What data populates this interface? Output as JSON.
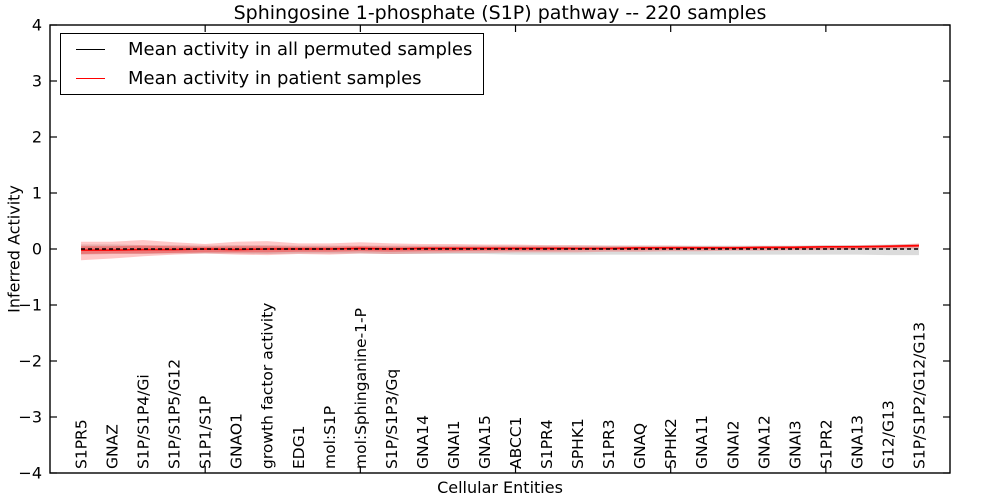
{
  "figure": {
    "title": "Sphingosine 1-phosphate (S1P) pathway -- 220 samples",
    "xlabel": "Cellular Entities",
    "ylabel": "Inferred Activity"
  },
  "legend": {
    "items": [
      {
        "label": "Mean activity in all permuted samples",
        "color": "#000000"
      },
      {
        "label": "Mean activity in patient samples",
        "color": "#ff0000"
      }
    ]
  },
  "chart_data": {
    "type": "line",
    "title": "Sphingosine 1-phosphate (S1P) pathway -- 220 samples",
    "xlabel": "Cellular Entities",
    "ylabel": "Inferred Activity",
    "ylim": [
      -4,
      4
    ],
    "yticks": [
      -4,
      -3,
      -2,
      -1,
      0,
      1,
      2,
      3,
      4
    ],
    "xticks": [
      5,
      10,
      15,
      20,
      25
    ],
    "grid": false,
    "legend_position": "upper left",
    "background": "#ffffff",
    "categories": [
      "S1PR5",
      "GNAZ",
      "S1P/S1P4/Gi",
      "S1P/S1P5/G12",
      "S1P1/S1P",
      "GNAO1",
      "growth factor activity",
      "EDG1",
      "mol:S1P",
      "mol:Sphinganine-1-P",
      "S1P/S1P3/Gq",
      "GNA14",
      "GNAI1",
      "GNA15",
      "ABCC1",
      "S1PR4",
      "SPHK1",
      "S1PR3",
      "GNAQ",
      "SPHK2",
      "GNA11",
      "GNAI2",
      "GNA12",
      "GNAI3",
      "S1PR2",
      "GNA13",
      "G12/G13",
      "S1P/S1P2/G12/G13"
    ],
    "series": [
      {
        "name": "Mean activity in all permuted samples",
        "color": "#000000",
        "line_style": "dashed",
        "values": [
          0,
          0,
          0,
          0,
          0,
          0,
          0,
          0,
          0,
          0,
          0,
          0,
          0,
          0,
          0,
          0,
          0,
          0,
          0,
          0,
          0,
          0,
          0,
          0,
          0,
          0,
          0,
          0
        ]
      },
      {
        "name": "Mean activity in patient samples",
        "color": "#ff0000",
        "line_style": "solid",
        "values": [
          -0.02,
          -0.02,
          -0.01,
          -0.01,
          0,
          -0.01,
          0,
          0,
          0,
          0.01,
          0,
          0.01,
          0.01,
          0.01,
          0.01,
          0.01,
          0.01,
          0.01,
          0.02,
          0.02,
          0.02,
          0.02,
          0.03,
          0.03,
          0.04,
          0.04,
          0.05,
          0.06
        ]
      }
    ],
    "bands": [
      {
        "name": "permuted-samples-std-band",
        "color": "#999999",
        "opacity": 0.35,
        "upper": [
          0.08,
          0.08,
          0.07,
          0.07,
          0.06,
          0.07,
          0.07,
          0.06,
          0.06,
          0.06,
          0.06,
          0.06,
          0.06,
          0.06,
          0.06,
          0.06,
          0.06,
          0.06,
          0.06,
          0.06,
          0.06,
          0.06,
          0.06,
          0.06,
          0.07,
          0.07,
          0.08,
          0.09
        ],
        "lower": [
          -0.1,
          -0.09,
          -0.09,
          -0.08,
          -0.08,
          -0.08,
          -0.09,
          -0.08,
          -0.08,
          -0.08,
          -0.09,
          -0.09,
          -0.09,
          -0.09,
          -0.1,
          -0.1,
          -0.1,
          -0.1,
          -0.1,
          -0.1,
          -0.1,
          -0.1,
          -0.1,
          -0.1,
          -0.1,
          -0.1,
          -0.11,
          -0.11
        ]
      },
      {
        "name": "patient-samples-outer-band",
        "color": "#ff0000",
        "opacity": 0.22,
        "upper": [
          0.13,
          0.13,
          0.16,
          0.12,
          0.09,
          0.13,
          0.14,
          0.1,
          0.1,
          0.12,
          0.1,
          0.09,
          0.09,
          0.08,
          0.08,
          0.07,
          0.07,
          0.06,
          0.06,
          0.06,
          0.05,
          0.05,
          0.05,
          0.05,
          0.06,
          0.06,
          0.07,
          0.1
        ],
        "lower": [
          -0.2,
          -0.17,
          -0.13,
          -0.1,
          -0.08,
          -0.1,
          -0.11,
          -0.09,
          -0.1,
          -0.08,
          -0.09,
          -0.08,
          -0.07,
          -0.07,
          -0.06,
          -0.06,
          -0.06,
          -0.05,
          -0.05,
          -0.04,
          -0.04,
          -0.03,
          -0.03,
          -0.02,
          -0.02,
          -0.01,
          0.0,
          0.01
        ]
      },
      {
        "name": "patient-samples-inner-band",
        "color": "#ff0000",
        "opacity": 0.3,
        "upper": [
          0.05,
          0.05,
          0.06,
          0.05,
          0.04,
          0.05,
          0.05,
          0.04,
          0.04,
          0.05,
          0.04,
          0.04,
          0.04,
          0.04,
          0.04,
          0.04,
          0.03,
          0.03,
          0.03,
          0.04,
          0.04,
          0.04,
          0.04,
          0.05,
          0.05,
          0.06,
          0.06,
          0.08
        ],
        "lower": [
          -0.09,
          -0.08,
          -0.08,
          -0.07,
          -0.06,
          -0.06,
          -0.06,
          -0.05,
          -0.05,
          -0.04,
          -0.05,
          -0.04,
          -0.04,
          -0.03,
          -0.03,
          -0.03,
          -0.02,
          -0.02,
          -0.02,
          -0.01,
          -0.01,
          -0.01,
          0.0,
          0.0,
          0.01,
          0.01,
          0.02,
          0.04
        ]
      }
    ]
  }
}
